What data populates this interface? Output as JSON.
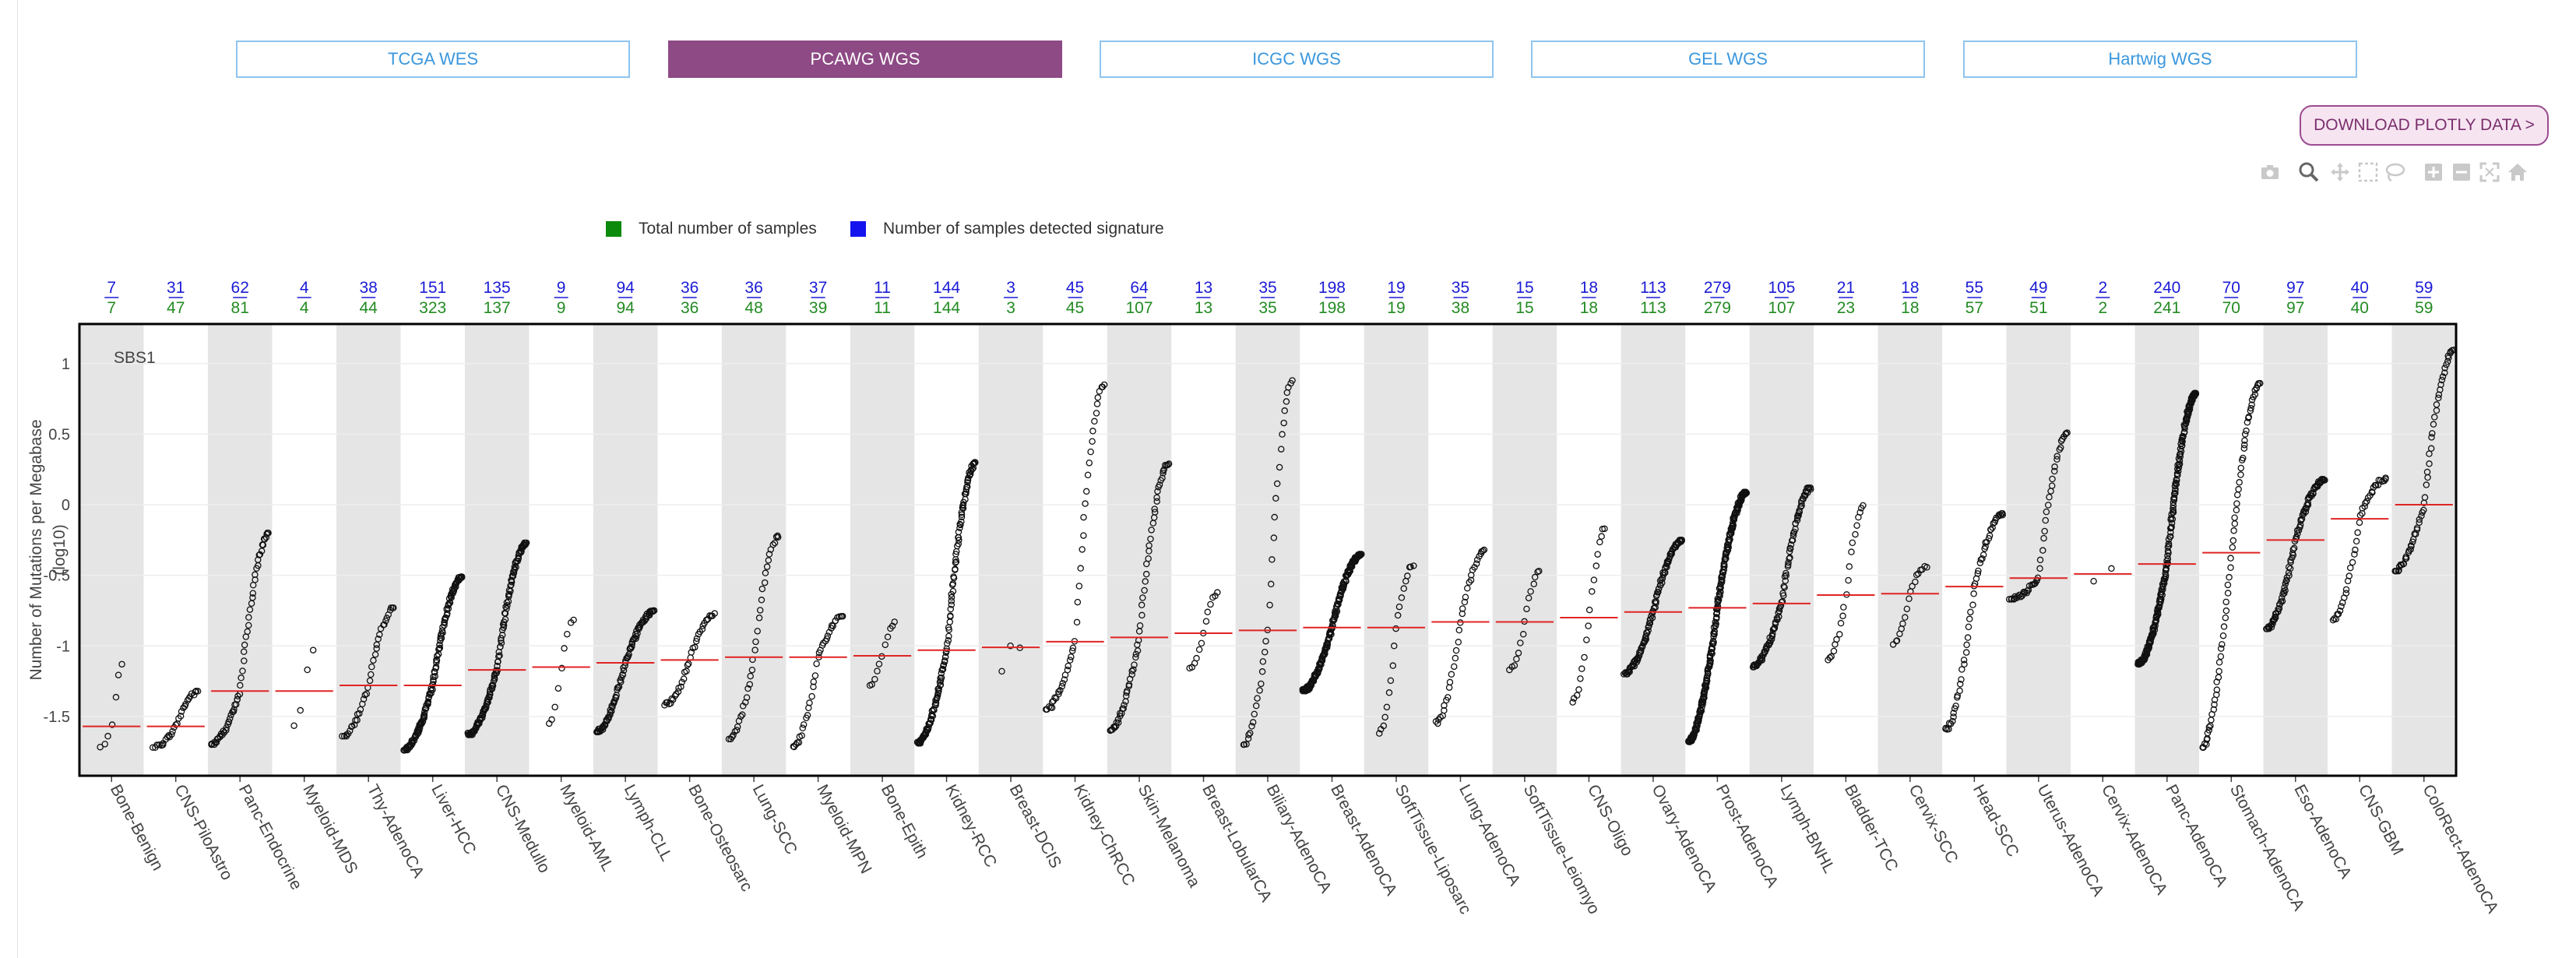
{
  "tabs": [
    {
      "label": "TCGA WES",
      "active": false
    },
    {
      "label": "PCAWG WGS",
      "active": true
    },
    {
      "label": "ICGC WGS",
      "active": false
    },
    {
      "label": "GEL WGS",
      "active": false
    },
    {
      "label": "Hartwig WGS",
      "active": false
    }
  ],
  "download_button": {
    "label": "DOWNLOAD PLOTLY DATA >"
  },
  "modebar": [
    "camera-icon",
    "zoom-icon",
    "pan-icon",
    "box-select-icon",
    "lasso-icon",
    "zoom-in-icon",
    "zoom-out-icon",
    "autoscale-icon",
    "reset-home-icon"
  ],
  "legend": {
    "total_label": "Total number of samples",
    "detected_label": "Number of samples detected signature",
    "total_color": "#0b8a0b",
    "detected_color": "#1414ee"
  },
  "chart_data": {
    "type": "scatter",
    "annotation": "SBS1",
    "ylabel": "Number of Mutations per Megabase\n(log10)",
    "ylim": [
      -1.92,
      1.28
    ],
    "yticks": [
      1,
      0.5,
      0,
      -0.5,
      -1,
      -1.5
    ],
    "grid": true,
    "legend_position": "top-center",
    "categories": [
      {
        "name": "Bone-Benign",
        "detected": 7,
        "total": 7,
        "median": -1.57,
        "min": -1.72,
        "max": -1.13
      },
      {
        "name": "CNS-PiloAstro",
        "detected": 31,
        "total": 47,
        "median": -1.57,
        "min": -1.72,
        "max": -1.32
      },
      {
        "name": "Panc-Endocrine",
        "detected": 62,
        "total": 81,
        "median": -1.32,
        "min": -1.7,
        "max": -0.2
      },
      {
        "name": "Myeloid-MDS",
        "detected": 4,
        "total": 4,
        "median": -1.32,
        "min": -1.58,
        "max": -1.03
      },
      {
        "name": "Thy-AdenoCA",
        "detected": 38,
        "total": 44,
        "median": -1.28,
        "min": -1.64,
        "max": -0.73
      },
      {
        "name": "Liver-HCC",
        "detected": 151,
        "total": 323,
        "median": -1.28,
        "min": -1.74,
        "max": -0.51
      },
      {
        "name": "CNS-Medullo",
        "detected": 135,
        "total": 137,
        "median": -1.17,
        "min": -1.63,
        "max": -0.27
      },
      {
        "name": "Myeloid-AML",
        "detected": 9,
        "total": 9,
        "median": -1.15,
        "min": -1.56,
        "max": -0.81
      },
      {
        "name": "Lymph-CLL",
        "detected": 94,
        "total": 94,
        "median": -1.12,
        "min": -1.61,
        "max": -0.75
      },
      {
        "name": "Bone-Osteosarc",
        "detected": 36,
        "total": 36,
        "median": -1.1,
        "min": -1.42,
        "max": -0.77
      },
      {
        "name": "Lung-SCC",
        "detected": 36,
        "total": 48,
        "median": -1.08,
        "min": -1.66,
        "max": -0.22
      },
      {
        "name": "Myeloid-MPN",
        "detected": 37,
        "total": 39,
        "median": -1.08,
        "min": -1.72,
        "max": -0.79
      },
      {
        "name": "Bone-Epith",
        "detected": 11,
        "total": 11,
        "median": -1.07,
        "min": -1.28,
        "max": -0.83
      },
      {
        "name": "Kidney-RCC",
        "detected": 144,
        "total": 144,
        "median": -1.03,
        "min": -1.69,
        "max": 0.3
      },
      {
        "name": "Breast-DCIS",
        "detected": 3,
        "total": 3,
        "median": -1.01,
        "min": -1.18,
        "max": -1.0
      },
      {
        "name": "Kidney-ChRCC",
        "detected": 45,
        "total": 45,
        "median": -0.97,
        "min": -1.45,
        "max": 0.85
      },
      {
        "name": "Skin-Melanoma",
        "detected": 64,
        "total": 107,
        "median": -0.94,
        "min": -1.6,
        "max": 0.29
      },
      {
        "name": "Breast-LobularCA",
        "detected": 13,
        "total": 13,
        "median": -0.91,
        "min": -1.17,
        "max": -0.62
      },
      {
        "name": "Biliary-AdenoCA",
        "detected": 35,
        "total": 35,
        "median": -0.89,
        "min": -1.71,
        "max": 0.88
      },
      {
        "name": "Breast-AdenoCA",
        "detected": 198,
        "total": 198,
        "median": -0.87,
        "min": -1.32,
        "max": -0.35
      },
      {
        "name": "SoftTissue-Liposarc",
        "detected": 19,
        "total": 19,
        "median": -0.87,
        "min": -1.62,
        "max": -0.42
      },
      {
        "name": "Lung-AdenoCA",
        "detected": 35,
        "total": 38,
        "median": -0.83,
        "min": -1.55,
        "max": -0.32
      },
      {
        "name": "SoftTissue-Leiomyo",
        "detected": 15,
        "total": 15,
        "median": -0.83,
        "min": -1.17,
        "max": -0.47
      },
      {
        "name": "CNS-Oligo",
        "detected": 18,
        "total": 18,
        "median": -0.8,
        "min": -1.4,
        "max": -0.17
      },
      {
        "name": "Ovary-AdenoCA",
        "detected": 113,
        "total": 113,
        "median": -0.76,
        "min": -1.2,
        "max": -0.25
      },
      {
        "name": "Prost-AdenoCA",
        "detected": 279,
        "total": 279,
        "median": -0.73,
        "min": -1.68,
        "max": 0.09
      },
      {
        "name": "Lymph-BNHL",
        "detected": 105,
        "total": 107,
        "median": -0.7,
        "min": -1.15,
        "max": 0.12
      },
      {
        "name": "Bladder-TCC",
        "detected": 21,
        "total": 23,
        "median": -0.64,
        "min": -1.1,
        "max": 0.0
      },
      {
        "name": "Cervix-SCC",
        "detected": 18,
        "total": 18,
        "median": -0.63,
        "min": -0.99,
        "max": -0.43
      },
      {
        "name": "Head-SCC",
        "detected": 55,
        "total": 57,
        "median": -0.58,
        "min": -1.6,
        "max": -0.06
      },
      {
        "name": "Uterus-AdenoCA",
        "detected": 49,
        "total": 51,
        "median": -0.52,
        "min": -0.67,
        "max": 0.51
      },
      {
        "name": "Cervix-AdenoCA",
        "detected": 2,
        "total": 2,
        "median": -0.49,
        "min": -0.55,
        "max": -0.44
      },
      {
        "name": "Panc-AdenoCA",
        "detected": 240,
        "total": 241,
        "median": -0.42,
        "min": -1.13,
        "max": 0.79
      },
      {
        "name": "Stomach-AdenoCA",
        "detected": 70,
        "total": 70,
        "median": -0.34,
        "min": -1.72,
        "max": 0.86
      },
      {
        "name": "Eso-AdenoCA",
        "detected": 97,
        "total": 97,
        "median": -0.25,
        "min": -0.88,
        "max": 0.18
      },
      {
        "name": "CNS-GBM",
        "detected": 40,
        "total": 40,
        "median": -0.1,
        "min": -0.82,
        "max": 0.19
      },
      {
        "name": "ColoRect-AdenoCA",
        "detected": 59,
        "total": 59,
        "median": 0.0,
        "min": -0.47,
        "max": 1.1
      }
    ]
  }
}
